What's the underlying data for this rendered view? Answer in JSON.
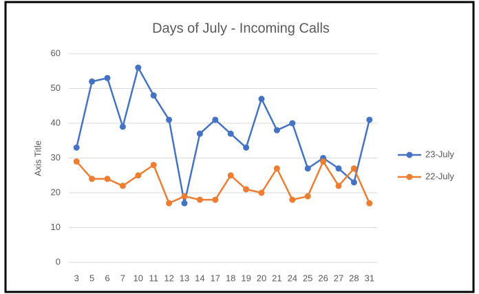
{
  "chart_data": {
    "type": "line",
    "title": "Days of July - Incoming Calls",
    "y_label": "Axis Title",
    "categories": [
      "3",
      "5",
      "6",
      "7",
      "10",
      "11",
      "12",
      "13",
      "14",
      "17",
      "18",
      "19",
      "20",
      "21",
      "24",
      "25",
      "26",
      "27",
      "28",
      "31"
    ],
    "series": [
      {
        "name": "23-July",
        "color": "#4472c4",
        "values": [
          33,
          52,
          53,
          39,
          56,
          48,
          41,
          17,
          37,
          41,
          37,
          33,
          47,
          38,
          40,
          27,
          30,
          27,
          23,
          41
        ]
      },
      {
        "name": "22-July",
        "color": "#ed7d31",
        "values": [
          29,
          24,
          24,
          22,
          25,
          28,
          17,
          19,
          18,
          18,
          25,
          21,
          20,
          27,
          18,
          19,
          29,
          22,
          27,
          17
        ]
      }
    ],
    "ylim": [
      0,
      60
    ],
    "yticks": [
      0,
      10,
      20,
      30,
      40,
      50,
      60
    ],
    "grid": true,
    "legend": "right"
  }
}
